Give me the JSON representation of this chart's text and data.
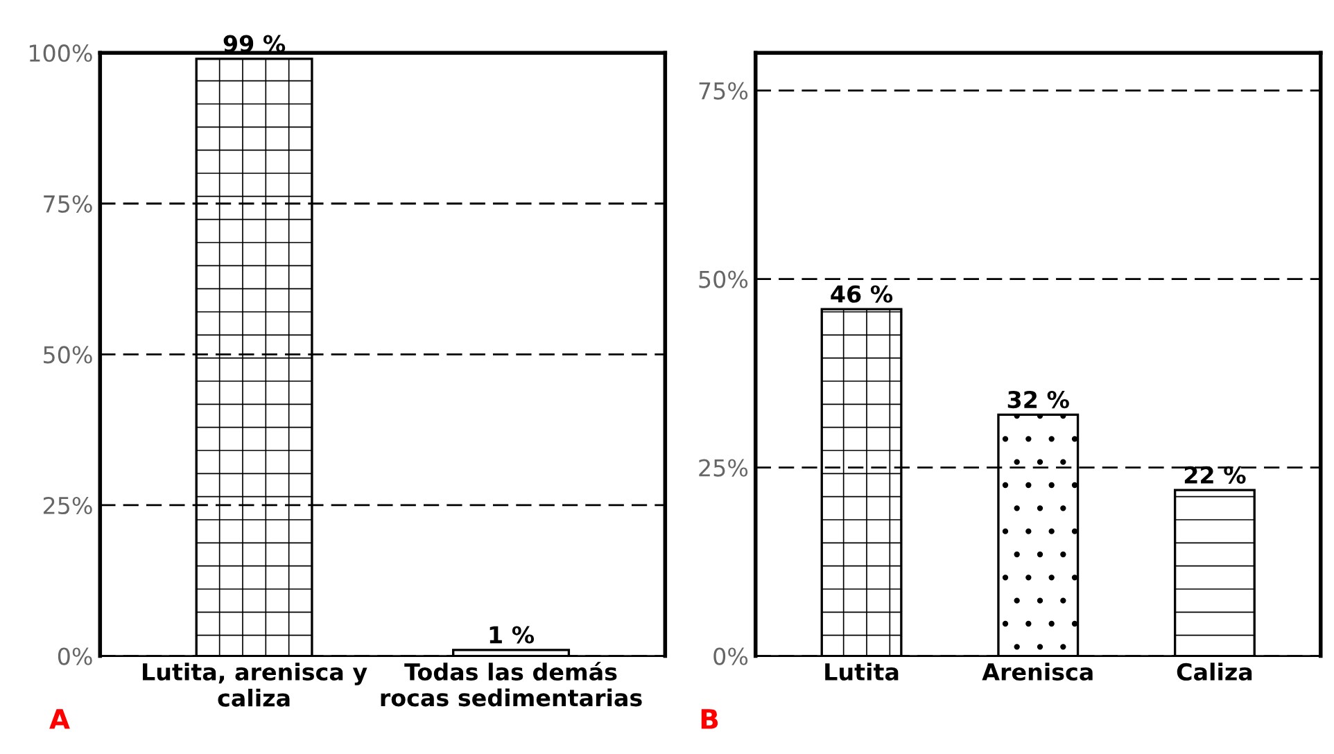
{
  "chart_data": [
    {
      "type": "bar",
      "categories": [
        "Lutita, arenisca y\ncaliza",
        "Todas las demás\nrocas sedimentarias"
      ],
      "values": [
        99,
        1
      ],
      "value_labels": [
        "99 %",
        "1 %"
      ],
      "color": "#000000",
      "ylim": [
        0,
        100
      ],
      "yticks": [
        {
          "value": 0,
          "label": "0%"
        },
        {
          "value": 25,
          "label": "25%"
        },
        {
          "value": 50,
          "label": "50%"
        },
        {
          "value": 75,
          "label": "75%"
        },
        {
          "value": 100,
          "label": "100%"
        }
      ],
      "grid": "y",
      "annotations": [
        "A"
      ]
    },
    {
      "type": "bar",
      "categories": [
        "Lutita",
        "Arenisca",
        "Caliza"
      ],
      "values": [
        46,
        32,
        22
      ],
      "value_labels": [
        "46 %",
        "32 %",
        "22 %"
      ],
      "color": "#000000",
      "ylim": [
        0,
        80
      ],
      "yticks": [
        {
          "value": 0,
          "label": "0%"
        },
        {
          "value": 25,
          "label": "25%"
        },
        {
          "value": 50,
          "label": "50%"
        },
        {
          "value": 75,
          "label": "75%"
        }
      ],
      "grid": "y",
      "annotations": [
        "B"
      ]
    }
  ]
}
